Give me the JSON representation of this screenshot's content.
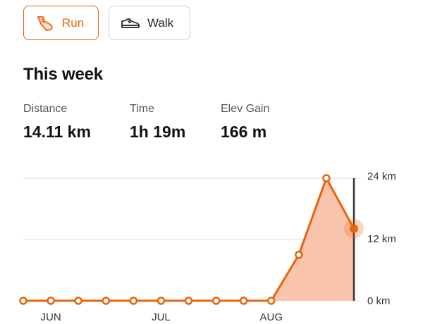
{
  "tabs": [
    {
      "label": "Run",
      "icon": "running-shoe-icon",
      "selected": true
    },
    {
      "label": "Walk",
      "icon": "sneaker-icon",
      "selected": false
    }
  ],
  "colors": {
    "accent": "#e8630a",
    "fill": "#f9c4ac",
    "grid": "#dddddd",
    "cursor": "#333333"
  },
  "summary": {
    "title": "This week",
    "stats": [
      {
        "label": "Distance",
        "value": "14.11 km"
      },
      {
        "label": "Time",
        "value": "1h 19m"
      },
      {
        "label": "Elev Gain",
        "value": "166 m"
      }
    ]
  },
  "chart_data": {
    "type": "area",
    "y_ticks": [
      "24 km",
      "12 km",
      "0 km"
    ],
    "x_ticks": [
      "JUN",
      "JUL",
      "AUG"
    ],
    "ylim": [
      0,
      24
    ],
    "values": [
      0,
      0,
      0,
      0,
      0,
      0,
      0,
      0,
      0,
      0,
      9,
      24,
      14.11
    ],
    "tick_positions": [
      1,
      5,
      9
    ],
    "selected_index": 12,
    "grid": true
  }
}
